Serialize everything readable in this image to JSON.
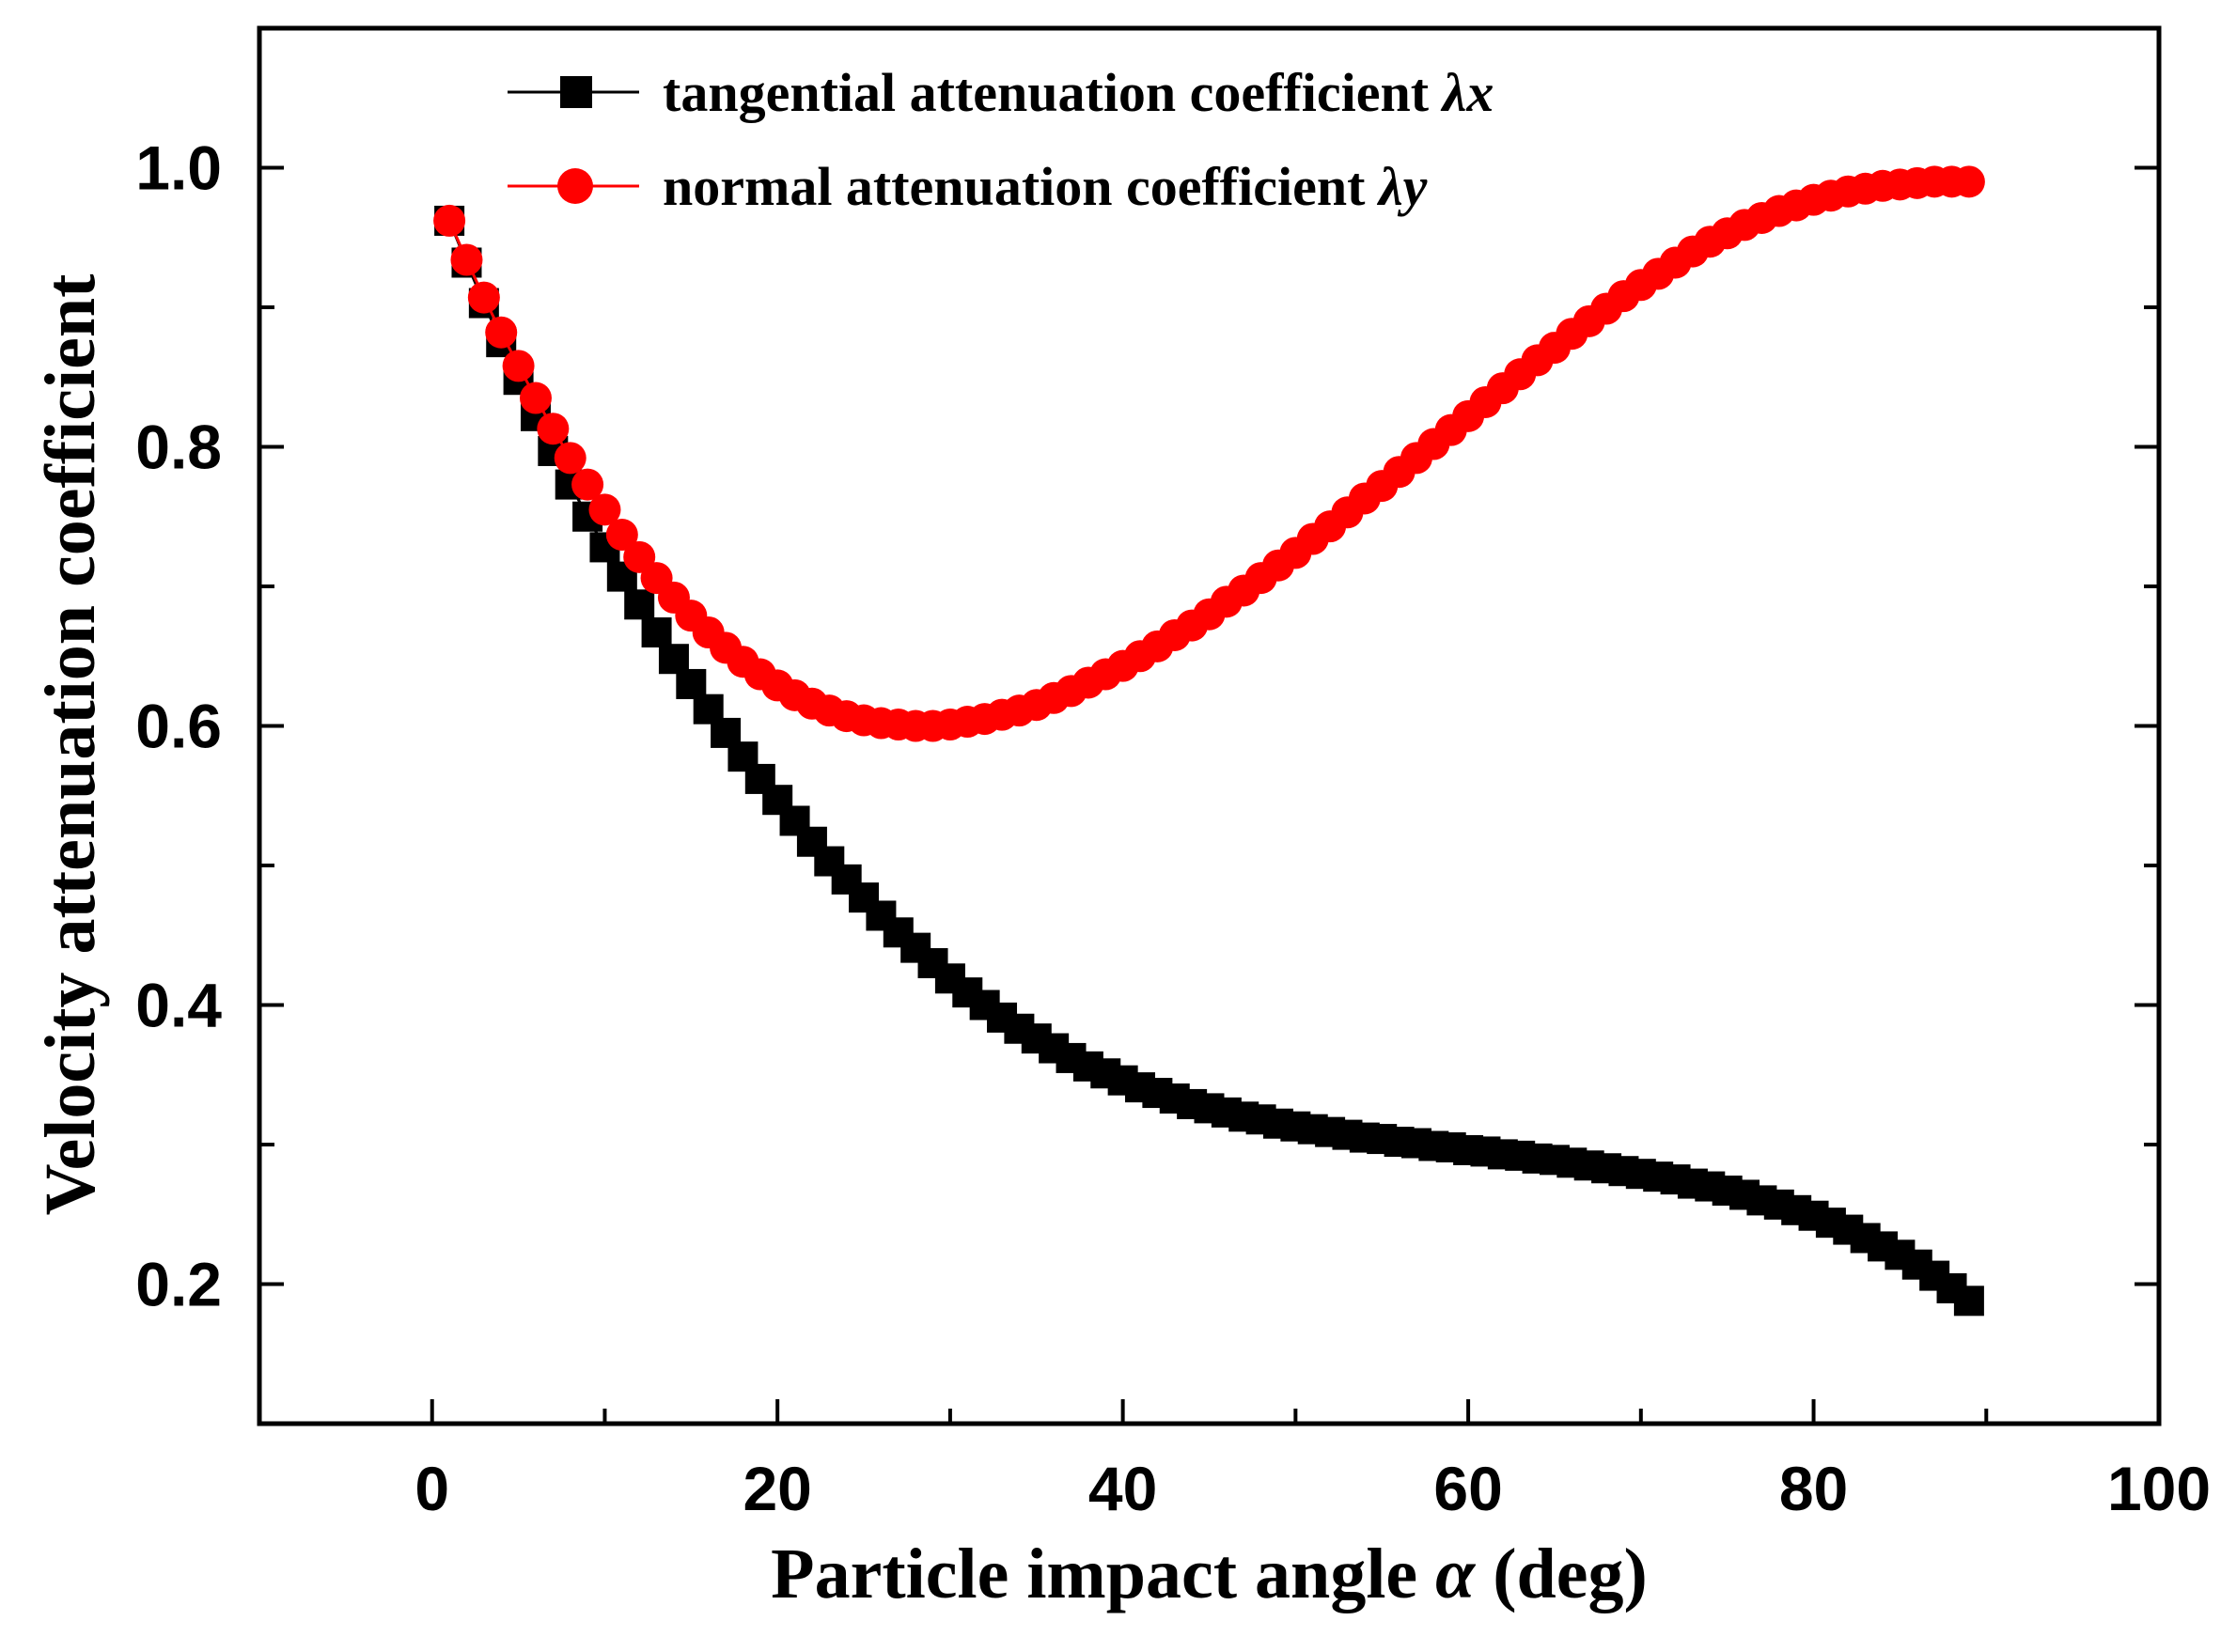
{
  "chart_data": {
    "type": "line",
    "xlabel": "Particle impact angle α (deg)",
    "ylabel": "Velocity attenuation coefficient",
    "xlim": [
      -10,
      100
    ],
    "ylim": [
      0.1,
      1.1
    ],
    "x_ticks": [
      "0",
      "20",
      "40",
      "60",
      "80",
      "100"
    ],
    "y_ticks": [
      "0.2",
      "0.4",
      "0.6",
      "0.8",
      "1.0"
    ],
    "grid": false,
    "legend_position": "top-center",
    "x": [
      1,
      2,
      3,
      4,
      5,
      6,
      7,
      8,
      9,
      10,
      11,
      12,
      13,
      14,
      15,
      16,
      17,
      18,
      19,
      20,
      21,
      22,
      23,
      24,
      25,
      26,
      27,
      28,
      29,
      30,
      31,
      32,
      33,
      34,
      35,
      36,
      37,
      38,
      39,
      40,
      41,
      42,
      43,
      44,
      45,
      46,
      47,
      48,
      49,
      50,
      51,
      52,
      53,
      54,
      55,
      56,
      57,
      58,
      59,
      60,
      61,
      62,
      63,
      64,
      65,
      66,
      67,
      68,
      69,
      70,
      71,
      72,
      73,
      74,
      75,
      76,
      77,
      78,
      79,
      80,
      81,
      82,
      83,
      84,
      85,
      86,
      87,
      88,
      89
    ],
    "series": [
      {
        "name": "tangential attenuation coefficient λx",
        "marker": "square",
        "color": "#000000",
        "values": [
          0.962,
          0.932,
          0.903,
          0.875,
          0.848,
          0.822,
          0.797,
          0.773,
          0.75,
          0.728,
          0.707,
          0.687,
          0.667,
          0.648,
          0.63,
          0.612,
          0.595,
          0.578,
          0.562,
          0.547,
          0.532,
          0.517,
          0.503,
          0.49,
          0.477,
          0.464,
          0.452,
          0.441,
          0.43,
          0.419,
          0.409,
          0.4,
          0.391,
          0.383,
          0.376,
          0.369,
          0.362,
          0.356,
          0.351,
          0.346,
          0.341,
          0.337,
          0.333,
          0.329,
          0.326,
          0.323,
          0.32,
          0.318,
          0.315,
          0.313,
          0.311,
          0.309,
          0.307,
          0.305,
          0.304,
          0.302,
          0.301,
          0.299,
          0.298,
          0.296,
          0.295,
          0.293,
          0.292,
          0.29,
          0.289,
          0.287,
          0.285,
          0.283,
          0.281,
          0.279,
          0.277,
          0.275,
          0.272,
          0.27,
          0.267,
          0.264,
          0.26,
          0.257,
          0.253,
          0.249,
          0.244,
          0.239,
          0.233,
          0.227,
          0.221,
          0.214,
          0.206,
          0.197,
          0.188
        ]
      },
      {
        "name": "normal attenuation coefficient λy",
        "marker": "circle",
        "color": "#ff0000",
        "values": [
          0.962,
          0.934,
          0.907,
          0.882,
          0.858,
          0.835,
          0.813,
          0.792,
          0.773,
          0.755,
          0.737,
          0.721,
          0.706,
          0.692,
          0.679,
          0.667,
          0.656,
          0.646,
          0.637,
          0.629,
          0.622,
          0.616,
          0.611,
          0.607,
          0.604,
          0.602,
          0.601,
          0.6,
          0.6,
          0.601,
          0.603,
          0.605,
          0.608,
          0.611,
          0.615,
          0.62,
          0.625,
          0.631,
          0.637,
          0.643,
          0.65,
          0.657,
          0.665,
          0.672,
          0.68,
          0.689,
          0.697,
          0.706,
          0.715,
          0.724,
          0.734,
          0.743,
          0.753,
          0.763,
          0.772,
          0.782,
          0.792,
          0.802,
          0.812,
          0.822,
          0.832,
          0.842,
          0.852,
          0.862,
          0.871,
          0.881,
          0.89,
          0.899,
          0.908,
          0.916,
          0.924,
          0.932,
          0.94,
          0.947,
          0.953,
          0.959,
          0.964,
          0.969,
          0.973,
          0.977,
          0.98,
          0.983,
          0.985,
          0.987,
          0.988,
          0.989,
          0.99,
          0.99,
          0.99
        ]
      }
    ]
  }
}
